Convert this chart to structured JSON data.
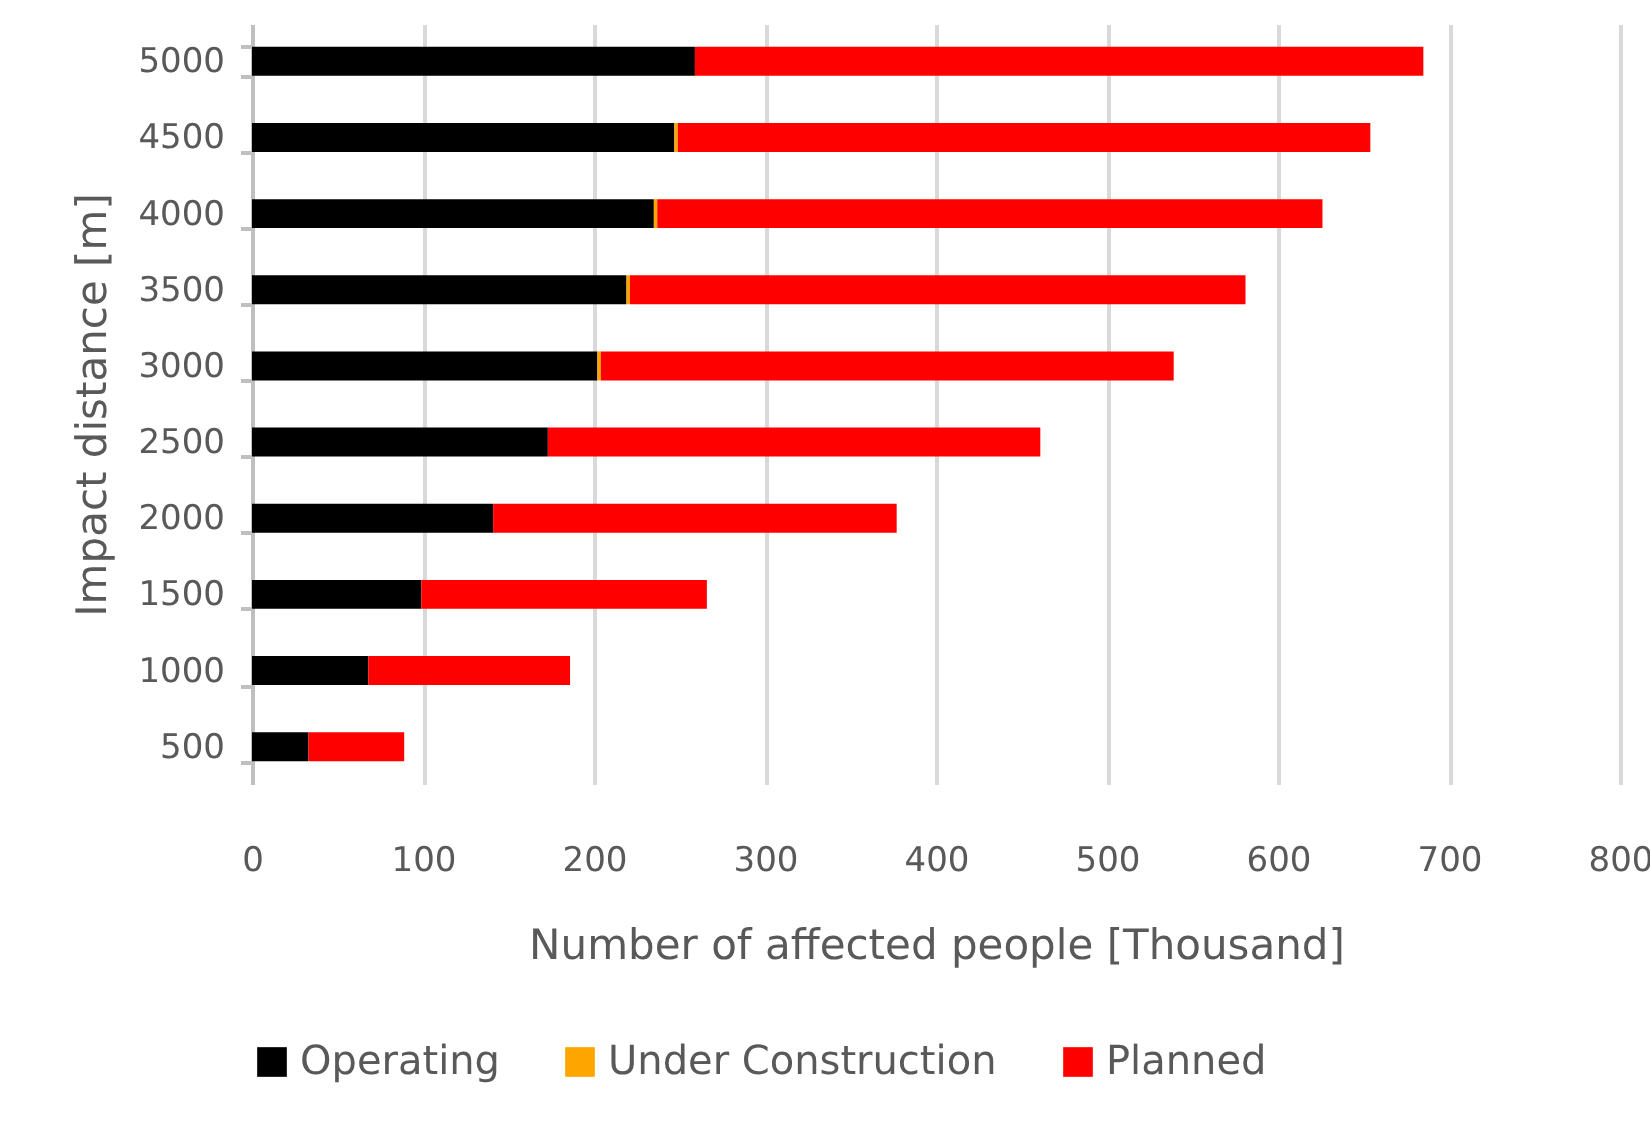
{
  "chart_data": {
    "type": "bar",
    "orientation": "horizontal",
    "stacked": true,
    "xlabel": "Number of affected people [Thousand]",
    "ylabel": "Impact distance [m]",
    "categories": [
      "5000",
      "4500",
      "4000",
      "3500",
      "3000",
      "2500",
      "2000",
      "1500",
      "1000",
      "500"
    ],
    "series": [
      {
        "name": "Operating",
        "color": "#000000",
        "values": [
          259,
          247,
          235,
          219,
          202,
          173,
          141,
          99,
          68,
          33
        ]
      },
      {
        "name": "Under Construction",
        "color": "#ffa500",
        "values": [
          0,
          2,
          2,
          2,
          2,
          0,
          0,
          0,
          0,
          0
        ]
      },
      {
        "name": "Planned",
        "color": "#ff0000",
        "values": [
          426,
          405,
          389,
          360,
          335,
          288,
          236,
          167,
          118,
          56
        ]
      }
    ],
    "xlim": [
      0,
      800
    ],
    "xticks": [
      0,
      100,
      200,
      300,
      400,
      500,
      600,
      700,
      800
    ],
    "grid": "x",
    "legend": "bottom"
  }
}
